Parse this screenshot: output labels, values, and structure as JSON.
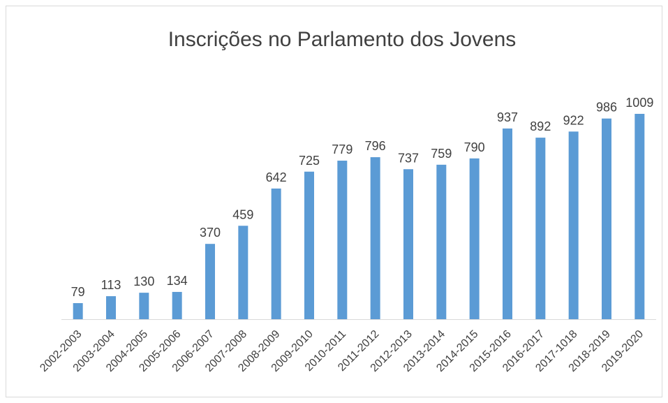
{
  "chart_data": {
    "type": "bar",
    "title": "Inscrições no Parlamento dos Jovens",
    "categories": [
      "2002-2003",
      "2003-2004",
      "2004-2005",
      "2005-2006",
      "2006-2007",
      "2007-2008",
      "2008-2009",
      "2009-2010",
      "2010-2011",
      "2011-2012",
      "2012-2013",
      "2013-2014",
      "2014-2015",
      "2015-2016",
      "2016-2017",
      "2017-1018",
      "2018-2019",
      "2019-2020"
    ],
    "values": [
      79,
      113,
      130,
      134,
      370,
      459,
      642,
      725,
      779,
      796,
      737,
      759,
      790,
      937,
      892,
      922,
      986,
      1009
    ],
    "color": "#5b9bd5"
  }
}
